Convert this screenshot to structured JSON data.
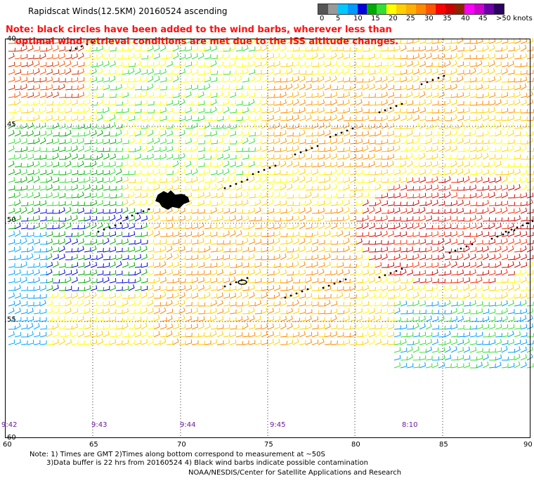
{
  "title": "Rapidscat Winds(12.5KM) 20160524 ascending",
  "note_lines": [
    "Note: black circles have been added to the wind barbs, wherever less than",
    "optimal wind retrieval conditions are met due to the ISS altitude changes."
  ],
  "legend": {
    "labels": [
      "0",
      "5",
      "10",
      "15",
      "20",
      "25",
      "30",
      "35",
      "40",
      "45",
      ">50 knots"
    ],
    "colors": [
      "#555555",
      "#999999",
      "#00c8ff",
      "#0099ff",
      "#0000dd",
      "#00aa00",
      "#33dd33",
      "#ffff00",
      "#ffd000",
      "#ffb000",
      "#ff8800",
      "#ff5500",
      "#ff0000",
      "#cc0000",
      "#8b2500",
      "#ff00ff",
      "#cc00cc",
      "#6a00a8",
      "#2a0060"
    ]
  },
  "lat_labels": [
    "40",
    "45",
    "50",
    "55",
    "60"
  ],
  "lon_labels": [
    "60",
    "65",
    "70",
    "75",
    "80",
    "85",
    "90"
  ],
  "time_labels": [
    "9:42",
    "9:43",
    "9:44",
    "9:45",
    "8:10"
  ],
  "footnotes": [
    "Note: 1) Times are GMT 2)Times along bottom correspond to measurement at ~50S",
    "3)Data buffer is 22 hrs from 20160524 4) Black wind barbs indicate possible contamination",
    "NOAA/NESDIS/Center for Satellite Applications and Research"
  ]
}
